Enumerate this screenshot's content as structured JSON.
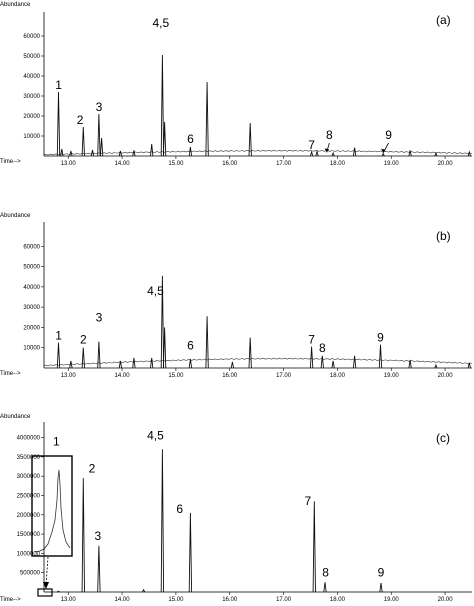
{
  "chart_data": [
    {
      "type": "line",
      "panel_label": "(a)",
      "ylabel": "Abundance",
      "xlabel": "Time-->",
      "xlim": [
        12.55,
        20.5
      ],
      "ylim": [
        0,
        70000
      ],
      "x_ticks": [
        13.0,
        14.0,
        15.0,
        16.0,
        17.0,
        18.0,
        19.0,
        20.0
      ],
      "x_tick_labels": [
        "13.00",
        "14.00",
        "15.00",
        "16.00",
        "17.00",
        "18.00",
        "19.00",
        "20.00"
      ],
      "y_ticks": [
        10000,
        20000,
        30000,
        40000,
        50000,
        60000
      ],
      "y_tick_labels": [
        "10000",
        "20000",
        "30000",
        "40000",
        "50000",
        "60000"
      ],
      "peaks": [
        {
          "x": 12.82,
          "y": 32000
        },
        {
          "x": 12.88,
          "y": 3500
        },
        {
          "x": 13.05,
          "y": 2500
        },
        {
          "x": 13.28,
          "y": 14500
        },
        {
          "x": 13.45,
          "y": 3000
        },
        {
          "x": 13.57,
          "y": 21000
        },
        {
          "x": 13.62,
          "y": 9000
        },
        {
          "x": 13.97,
          "y": 2500
        },
        {
          "x": 14.22,
          "y": 2800
        },
        {
          "x": 14.55,
          "y": 6000
        },
        {
          "x": 14.75,
          "y": 50500
        },
        {
          "x": 14.79,
          "y": 17000
        },
        {
          "x": 15.27,
          "y": 4500
        },
        {
          "x": 15.58,
          "y": 37000
        },
        {
          "x": 16.38,
          "y": 16500
        },
        {
          "x": 17.52,
          "y": 2000
        },
        {
          "x": 17.62,
          "y": 2200
        },
        {
          "x": 17.92,
          "y": 1500
        },
        {
          "x": 18.32,
          "y": 4200
        },
        {
          "x": 18.85,
          "y": 1200
        },
        {
          "x": 19.35,
          "y": 2800
        },
        {
          "x": 19.83,
          "y": 1500
        },
        {
          "x": 20.45,
          "y": 2000
        }
      ],
      "annotations": [
        {
          "text": "1",
          "x": 12.82,
          "y": 33500
        },
        {
          "text": "2",
          "x": 13.22,
          "y": 16000
        },
        {
          "text": "3",
          "x": 13.57,
          "y": 22500
        },
        {
          "text": "4,5",
          "x": 14.72,
          "y": 64500
        },
        {
          "text": "6",
          "x": 15.27,
          "y": 6500
        },
        {
          "text": "7",
          "x": 17.52,
          "y": 3500
        },
        {
          "text": "8",
          "x": 17.85,
          "y": 8500
        },
        {
          "text": "9",
          "x": 18.95,
          "y": 8500
        }
      ]
    },
    {
      "type": "line",
      "panel_label": "(b)",
      "ylabel": "Abundance",
      "xlabel": "Time-->",
      "xlim": [
        12.55,
        20.5
      ],
      "ylim": [
        0,
        70000
      ],
      "x_ticks": [
        13.0,
        14.0,
        15.0,
        16.0,
        17.0,
        18.0,
        19.0,
        20.0
      ],
      "x_tick_labels": [
        "13.00",
        "14.00",
        "15.00",
        "16.00",
        "17.00",
        "18.00",
        "19.00",
        "20.00"
      ],
      "y_ticks": [
        10000,
        20000,
        30000,
        40000,
        50000,
        60000
      ],
      "y_tick_labels": [
        "10000",
        "20000",
        "30000",
        "40000",
        "50000",
        "60000"
      ],
      "peaks": [
        {
          "x": 12.82,
          "y": 12500
        },
        {
          "x": 13.05,
          "y": 3500
        },
        {
          "x": 13.28,
          "y": 10000
        },
        {
          "x": 13.57,
          "y": 13000
        },
        {
          "x": 13.97,
          "y": 3500
        },
        {
          "x": 14.22,
          "y": 5000
        },
        {
          "x": 14.55,
          "y": 5000
        },
        {
          "x": 14.75,
          "y": 45500
        },
        {
          "x": 14.79,
          "y": 20000
        },
        {
          "x": 15.27,
          "y": 4500
        },
        {
          "x": 15.58,
          "y": 25500
        },
        {
          "x": 16.05,
          "y": 3000
        },
        {
          "x": 16.38,
          "y": 15000
        },
        {
          "x": 17.52,
          "y": 10500
        },
        {
          "x": 17.72,
          "y": 6000
        },
        {
          "x": 17.92,
          "y": 3500
        },
        {
          "x": 18.32,
          "y": 6000
        },
        {
          "x": 18.8,
          "y": 11500
        },
        {
          "x": 19.35,
          "y": 4000
        },
        {
          "x": 19.83,
          "y": 1500
        },
        {
          "x": 20.45,
          "y": 2500
        }
      ],
      "annotations": [
        {
          "text": "1",
          "x": 12.82,
          "y": 14000
        },
        {
          "text": "2",
          "x": 13.28,
          "y": 12000
        },
        {
          "text": "3",
          "x": 13.57,
          "y": 23000
        },
        {
          "text": "4,5",
          "x": 14.62,
          "y": 36000
        },
        {
          "text": "6",
          "x": 15.27,
          "y": 9000
        },
        {
          "text": "7",
          "x": 17.52,
          "y": 12000
        },
        {
          "text": "8",
          "x": 17.72,
          "y": 8000
        },
        {
          "text": "9",
          "x": 18.8,
          "y": 13000
        }
      ]
    },
    {
      "type": "line",
      "panel_label": "(c)",
      "ylabel": "Abundance",
      "xlabel": "Time-->",
      "xlim": [
        12.55,
        20.5
      ],
      "ylim": [
        0,
        4300000
      ],
      "x_ticks": [
        13.0,
        14.0,
        15.0,
        16.0,
        17.0,
        18.0,
        19.0,
        20.0
      ],
      "x_tick_labels": [
        "13.00",
        "14.00",
        "15.00",
        "16.00",
        "17.00",
        "18.00",
        "19.00",
        "20.00"
      ],
      "y_ticks": [
        500000,
        1000000,
        1500000,
        2000000,
        2500000,
        3000000,
        3500000,
        4000000
      ],
      "y_tick_labels": [
        "500000",
        "1000000",
        "1500000",
        "2000000",
        "2500000",
        "3000000",
        "3500000",
        "4000000"
      ],
      "peaks": [
        {
          "x": 12.82,
          "y": 20000
        },
        {
          "x": 13.28,
          "y": 2950000
        },
        {
          "x": 13.57,
          "y": 1200000
        },
        {
          "x": 14.4,
          "y": 60000
        },
        {
          "x": 14.75,
          "y": 3700000
        },
        {
          "x": 15.27,
          "y": 2050000
        },
        {
          "x": 17.57,
          "y": 2350000
        },
        {
          "x": 17.77,
          "y": 250000
        },
        {
          "x": 18.81,
          "y": 230000
        }
      ],
      "annotations": [
        {
          "text": "1",
          "x": 12.78,
          "y": 3800000
        },
        {
          "text": "2",
          "x": 13.44,
          "y": 3100000
        },
        {
          "text": "3",
          "x": 13.55,
          "y": 1350000
        },
        {
          "text": "4,5",
          "x": 14.62,
          "y": 3950000
        },
        {
          "text": "6",
          "x": 15.07,
          "y": 2050000
        },
        {
          "text": "7",
          "x": 17.45,
          "y": 2250000
        },
        {
          "text": "8",
          "x": 17.78,
          "y": 400000
        },
        {
          "text": "9",
          "x": 18.81,
          "y": 400000
        }
      ]
    }
  ]
}
